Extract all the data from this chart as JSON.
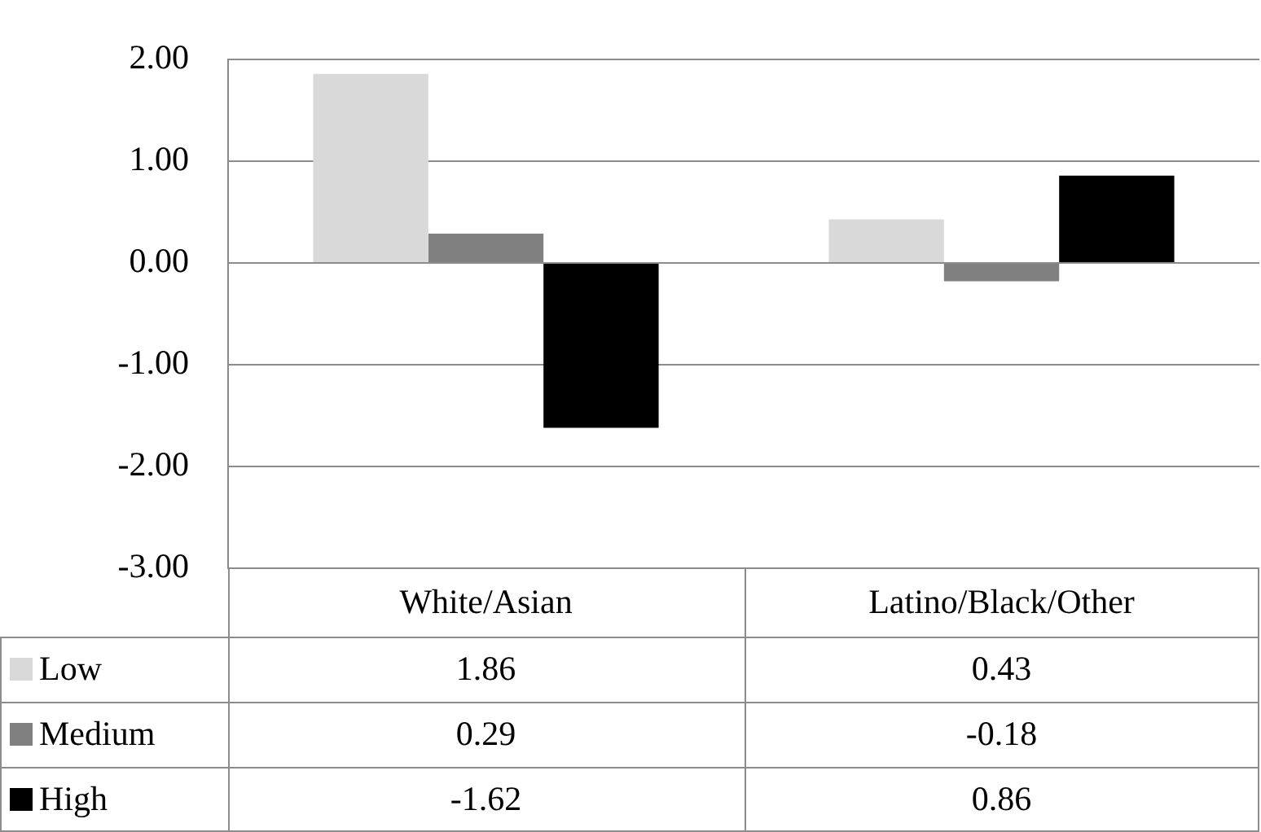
{
  "chart_data": {
    "type": "bar",
    "categories": [
      "White/Asian",
      "Latino/Black/Other"
    ],
    "series": [
      {
        "name": "Low",
        "color": "#d9d9d9",
        "values": [
          1.86,
          0.43
        ]
      },
      {
        "name": "Medium",
        "color": "#808080",
        "values": [
          0.29,
          -0.18
        ]
      },
      {
        "name": "High",
        "color": "#000000",
        "values": [
          -1.62,
          0.86
        ]
      }
    ],
    "ylim": [
      -3,
      2
    ],
    "yticks": [
      {
        "value": -3,
        "label": "-3.00"
      },
      {
        "value": -2,
        "label": "-2.00"
      },
      {
        "value": -1,
        "label": "-1.00"
      },
      {
        "value": 0,
        "label": "0.00"
      },
      {
        "value": 1,
        "label": "1.00"
      },
      {
        "value": 2,
        "label": "2.00"
      }
    ],
    "grid": "y",
    "legend": "bottom",
    "data_labels": true
  }
}
